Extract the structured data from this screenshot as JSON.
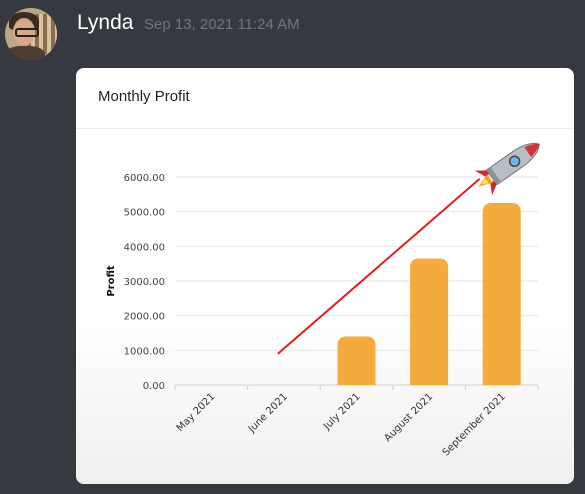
{
  "message": {
    "author": "Lynda",
    "timestamp": "Sep 13, 2021 11:24 AM"
  },
  "card": {
    "title": "Monthly Profit"
  },
  "chart_data": {
    "type": "bar",
    "title": "Monthly Profit",
    "xlabel": "",
    "ylabel": "Profit",
    "categories": [
      "May 2021",
      "June 2021",
      "July 2021",
      "August 2021",
      "September 2021"
    ],
    "values": [
      0,
      0,
      1400,
      3650,
      5250
    ],
    "ylim": [
      0,
      6000
    ],
    "yticks": [
      "0.00",
      "1000.00",
      "2000.00",
      "3000.00",
      "4000.00",
      "5000.00",
      "6000.00"
    ],
    "grid": true,
    "bar_color": "#f5ab3b",
    "trend_line": {
      "color": "#e02020",
      "from": [
        "June 2021",
        900
      ],
      "to": [
        "September 2021",
        5950
      ]
    },
    "annotation_icon": "rocket-icon"
  }
}
